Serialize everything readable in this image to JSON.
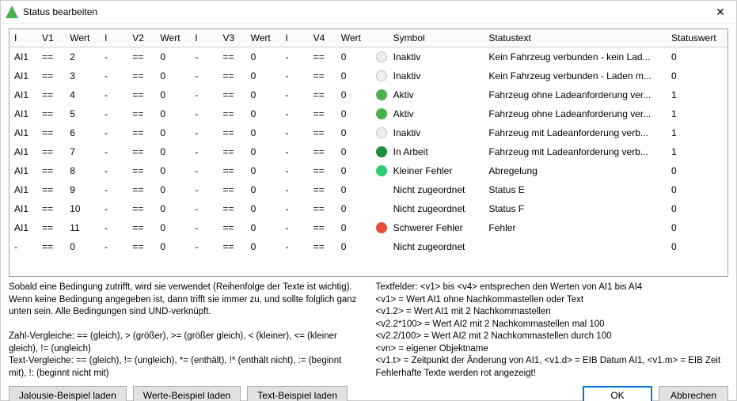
{
  "title": "Status bearbeiten",
  "columns": [
    "I",
    "V1",
    "Wert",
    "I",
    "V2",
    "Wert",
    "I",
    "V3",
    "Wert",
    "I",
    "V4",
    "Wert",
    "",
    "Symbol",
    "Statustext",
    "Statuswert"
  ],
  "rows": [
    {
      "i1": "AI1",
      "v1": "==",
      "w1": "2",
      "i2": "-",
      "v2": "==",
      "w2": "0",
      "i3": "-",
      "v3": "==",
      "w3": "0",
      "i4": "-",
      "v4": "==",
      "w4": "0",
      "sym": "Inaktiv",
      "symc": "#c8c8c8",
      "stxt": "Kein Fahrzeug verbunden - kein Lad...",
      "swert": "0"
    },
    {
      "i1": "AI1",
      "v1": "==",
      "w1": "3",
      "i2": "-",
      "v2": "==",
      "w2": "0",
      "i3": "-",
      "v3": "==",
      "w3": "0",
      "i4": "-",
      "v4": "==",
      "w4": "0",
      "sym": "Inaktiv",
      "symc": "#c8c8c8",
      "stxt": "Kein Fahrzeug verbunden - Laden m...",
      "swert": "0"
    },
    {
      "i1": "AI1",
      "v1": "==",
      "w1": "4",
      "i2": "-",
      "v2": "==",
      "w2": "0",
      "i3": "-",
      "v3": "==",
      "w3": "0",
      "i4": "-",
      "v4": "==",
      "w4": "0",
      "sym": "Aktiv",
      "symc": "#4caf50",
      "stxt": "Fahrzeug ohne Ladeanforderung ver...",
      "swert": "1"
    },
    {
      "i1": "AI1",
      "v1": "==",
      "w1": "5",
      "i2": "-",
      "v2": "==",
      "w2": "0",
      "i3": "-",
      "v3": "==",
      "w3": "0",
      "i4": "-",
      "v4": "==",
      "w4": "0",
      "sym": "Aktiv",
      "symc": "#4caf50",
      "stxt": "Fahrzeug ohne Ladeanforderung ver...",
      "swert": "1"
    },
    {
      "i1": "AI1",
      "v1": "==",
      "w1": "6",
      "i2": "-",
      "v2": "==",
      "w2": "0",
      "i3": "-",
      "v3": "==",
      "w3": "0",
      "i4": "-",
      "v4": "==",
      "w4": "0",
      "sym": "Inaktiv",
      "symc": "#c8c8c8",
      "stxt": "Fahrzeug mit Ladeanforderung verb...",
      "swert": "1"
    },
    {
      "i1": "AI1",
      "v1": "==",
      "w1": "7",
      "i2": "-",
      "v2": "==",
      "w2": "0",
      "i3": "-",
      "v3": "==",
      "w3": "0",
      "i4": "-",
      "v4": "==",
      "w4": "0",
      "sym": "In Arbeit",
      "symc": "#1e8e3e",
      "stxt": "Fahrzeug mit Ladeanforderung verb...",
      "swert": "1"
    },
    {
      "i1": "AI1",
      "v1": "==",
      "w1": "8",
      "i2": "-",
      "v2": "==",
      "w2": "0",
      "i3": "-",
      "v3": "==",
      "w3": "0",
      "i4": "-",
      "v4": "==",
      "w4": "0",
      "sym": "Kleiner Fehler",
      "symc": "#2ecc71",
      "stxt": "Abregelung",
      "swert": "0"
    },
    {
      "i1": "AI1",
      "v1": "==",
      "w1": "9",
      "i2": "-",
      "v2": "==",
      "w2": "0",
      "i3": "-",
      "v3": "==",
      "w3": "0",
      "i4": "-",
      "v4": "==",
      "w4": "0",
      "sym": "Nicht zugeordnet",
      "symc": "",
      "stxt": "Status E",
      "swert": "0"
    },
    {
      "i1": "AI1",
      "v1": "==",
      "w1": "10",
      "i2": "-",
      "v2": "==",
      "w2": "0",
      "i3": "-",
      "v3": "==",
      "w3": "0",
      "i4": "-",
      "v4": "==",
      "w4": "0",
      "sym": "Nicht zugeordnet",
      "symc": "",
      "stxt": "Status F",
      "swert": "0"
    },
    {
      "i1": "AI1",
      "v1": "==",
      "w1": "11",
      "i2": "-",
      "v2": "==",
      "w2": "0",
      "i3": "-",
      "v3": "==",
      "w3": "0",
      "i4": "-",
      "v4": "==",
      "w4": "0",
      "sym": "Schwerer Fehler",
      "symc": "#e74c3c",
      "stxt": "Fehler",
      "swert": "0"
    },
    {
      "i1": "-",
      "v1": "==",
      "w1": "0",
      "i2": "-",
      "v2": "==",
      "w2": "0",
      "i3": "-",
      "v3": "==",
      "w3": "0",
      "i4": "-",
      "v4": "==",
      "w4": "0",
      "sym": "Nicht zugeordnet",
      "symc": "",
      "stxt": "",
      "swert": "0"
    }
  ],
  "help_left": "Sobald eine Bedingung zutrifft, wird sie verwendet (Reihenfolge der Texte ist wichtig). Wenn keine Bedingung angegeben ist, dann trifft sie immer zu, und sollte folglich ganz unten sein. Alle Bedingungen sind UND-verknüpft.\n\nZahl-Vergleiche: == (gleich), > (größer), >= (größer gleich), < (kleiner), <= (kleiner gleich), != (ungleich)\nText-Vergleiche: == (gleich), != (ungleich), *= (enthält), !* (enthält nicht), := (beginnt mit), !: (beginnt nicht mit)",
  "help_right": "Textfelder: <v1> bis <v4> entsprechen den Werten von AI1 bis AI4\n<v1> = Wert AI1 ohne Nachkommastellen oder Text\n<v1.2> = Wert AI1 mit 2 Nachkommastellen\n<v2.2*100> = Wert AI2 mit 2 Nachkommastellen mal 100\n<v2.2/100> = Wert AI2 mit 2 Nachkommastellen durch 100\n<vn> = eigener Objektname\n<v1.t> = Zeitpunkt der Änderung von AI1, <v1.d> = EIB Datum AI1, <v1.m> = EIB Zeit\nFehlerhafte Texte werden rot angezeigt!",
  "buttons": {
    "jalousie": "Jalousie-Beispiel laden",
    "werte": "Werte-Beispiel laden",
    "text": "Text-Beispiel laden",
    "ok": "OK",
    "cancel": "Abbrechen"
  }
}
